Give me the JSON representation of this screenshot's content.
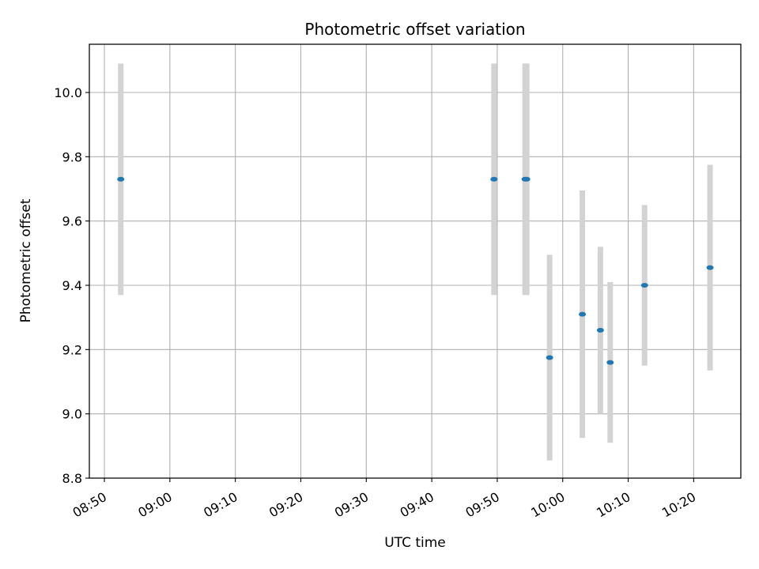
{
  "chart_data": {
    "type": "scatter",
    "title": "Photometric offset variation",
    "xlabel": "UTC time",
    "ylabel": "Photometric offset",
    "x_tick_labels": [
      "08:50",
      "09:00",
      "09:10",
      "09:20",
      "09:30",
      "09:40",
      "09:50",
      "10:00",
      "10:10",
      "10:20"
    ],
    "x_ticks_min": [
      530,
      540,
      550,
      560,
      570,
      580,
      590,
      600,
      610,
      620
    ],
    "y_tick_labels": [
      "8.8",
      "9.0",
      "9.2",
      "9.4",
      "9.6",
      "9.8",
      "10.0"
    ],
    "y_ticks": [
      8.8,
      9.0,
      9.2,
      9.4,
      9.6,
      9.8,
      10.0
    ],
    "xlim_min": [
      527.7,
      627.2
    ],
    "ylim": [
      8.8,
      10.15
    ],
    "grid": true,
    "marker_color": "#1f77b4",
    "errorbar_color": "#d3d3d3",
    "series": [
      {
        "time": [
          "08:52:30",
          "09:49:30",
          "09:54:15",
          "09:54:30",
          "09:58:00",
          "10:03:00",
          "10:05:45",
          "10:07:15",
          "10:12:30",
          "10:22:30"
        ],
        "x_min": [
          532.5,
          589.5,
          594.25,
          594.5,
          598.0,
          603.0,
          605.75,
          607.25,
          612.5,
          622.5
        ],
        "y": [
          9.73,
          9.73,
          9.73,
          9.73,
          9.175,
          9.31,
          9.26,
          9.16,
          9.4,
          9.455
        ],
        "yerr": [
          0.36,
          0.36,
          0.36,
          0.36,
          0.32,
          0.385,
          0.26,
          0.25,
          0.25,
          0.32
        ]
      }
    ]
  }
}
